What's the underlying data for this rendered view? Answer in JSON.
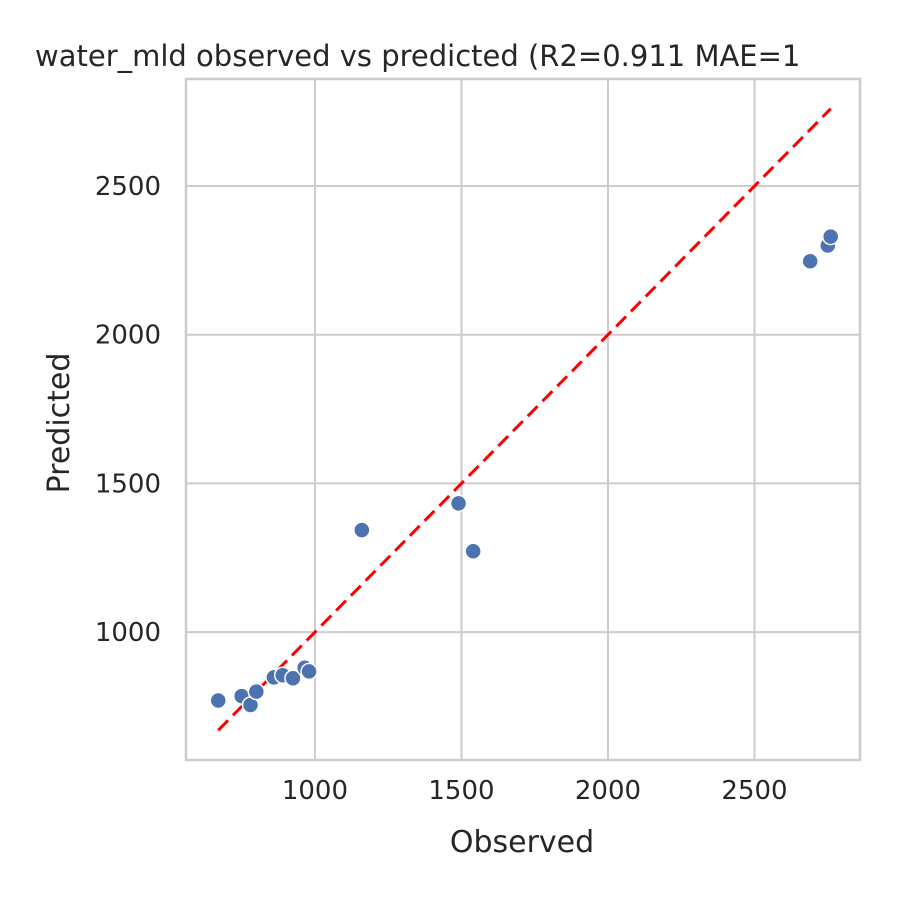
{
  "chart_data": {
    "type": "scatter",
    "title": "water_mld observed vs predicted (R2=0.911 MAE=1",
    "xlabel": "Observed",
    "ylabel": "Predicted",
    "xlim": [
      560,
      2860
    ],
    "ylim": [
      570,
      2860
    ],
    "xticks": [
      1000,
      1500,
      2000,
      2500
    ],
    "yticks": [
      1000,
      1500,
      2000,
      2500
    ],
    "grid": true,
    "reference_line": {
      "from": [
        670,
        670
      ],
      "to": [
        2760,
        2760
      ],
      "color": "#ff0000",
      "style": "dashed"
    },
    "series": [
      {
        "color": "#4c72b0",
        "points": [
          [
            670,
            770
          ],
          [
            750,
            785
          ],
          [
            780,
            755
          ],
          [
            800,
            800
          ],
          [
            860,
            848
          ],
          [
            890,
            855
          ],
          [
            925,
            845
          ],
          [
            965,
            880
          ],
          [
            980,
            868
          ],
          [
            1160,
            1343
          ],
          [
            1490,
            1433
          ],
          [
            1540,
            1272
          ],
          [
            2690,
            2247
          ],
          [
            2750,
            2300
          ],
          [
            2760,
            2330
          ]
        ]
      }
    ]
  }
}
